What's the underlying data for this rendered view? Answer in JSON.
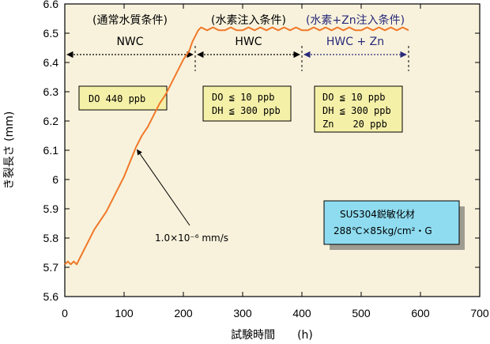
{
  "chart_data": {
    "type": "line",
    "title": "",
    "xlabel": "試験時間　　(h)",
    "ylabel": "き裂長さ (mm)",
    "xlim": [
      0,
      700
    ],
    "ylim": [
      5.6,
      6.6
    ],
    "x_ticks": [
      "0",
      "100",
      "200",
      "300",
      "400",
      "500",
      "600",
      "700"
    ],
    "y_ticks": [
      "5.6",
      "5.7",
      "5.8",
      "5.9",
      "6",
      "6.1",
      "6.2",
      "6.3",
      "6.4",
      "6.5",
      "6.6"
    ],
    "grid": false,
    "series": [
      {
        "color": "#f07828",
        "x": [
          0,
          5,
          10,
          15,
          20,
          30,
          40,
          50,
          60,
          70,
          80,
          90,
          100,
          110,
          120,
          130,
          140,
          150,
          160,
          170,
          180,
          190,
          200,
          210,
          215,
          220,
          225,
          230,
          240,
          250,
          260,
          270,
          280,
          290,
          300,
          310,
          320,
          330,
          340,
          350,
          360,
          370,
          380,
          390,
          400,
          410,
          420,
          430,
          440,
          450,
          460,
          470,
          480,
          490,
          500,
          510,
          520,
          530,
          540,
          550,
          560,
          570,
          580
        ],
        "y": [
          5.71,
          5.72,
          5.71,
          5.72,
          5.71,
          5.75,
          5.79,
          5.83,
          5.86,
          5.89,
          5.93,
          5.97,
          6.01,
          6.06,
          6.11,
          6.15,
          6.18,
          6.22,
          6.26,
          6.29,
          6.33,
          6.37,
          6.41,
          6.44,
          6.47,
          6.49,
          6.51,
          6.52,
          6.51,
          6.52,
          6.51,
          6.51,
          6.52,
          6.51,
          6.51,
          6.52,
          6.51,
          6.52,
          6.51,
          6.52,
          6.51,
          6.52,
          6.51,
          6.52,
          6.51,
          6.51,
          6.52,
          6.51,
          6.52,
          6.51,
          6.52,
          6.51,
          6.52,
          6.51,
          6.51,
          6.52,
          6.51,
          6.52,
          6.51,
          6.52,
          6.51,
          6.52,
          6.51
        ]
      }
    ],
    "phases": [
      {
        "title": "(通常水質条件)",
        "name": "NWC",
        "from": 0,
        "to": 220,
        "color": "#000000"
      },
      {
        "title": "(水素注入条件)",
        "name": "HWC",
        "from": 220,
        "to": 400,
        "color": "#000000"
      },
      {
        "title": "(水素+Zn注入条件)",
        "name": "HWC + Zn",
        "from": 400,
        "to": 580,
        "color": "#2a2a7a"
      }
    ],
    "boxes": [
      {
        "lines": [
          "DO 440 ppb"
        ]
      },
      {
        "lines": [
          "DO ≦ 10 ppb",
          "DH ≦ 300 ppb"
        ]
      },
      {
        "lines": [
          "DO ≦ 10 ppb",
          "DH ≦ 300 ppb",
          "Zn　　20 ppb"
        ]
      }
    ],
    "annotation": {
      "text": "1.0×10⁻⁶ mm/s",
      "x": 122,
      "y": 6.11
    },
    "material_box": {
      "lines": [
        "SUS304鋭敏化材",
        "288℃×85kg/cm²・G"
      ]
    }
  }
}
